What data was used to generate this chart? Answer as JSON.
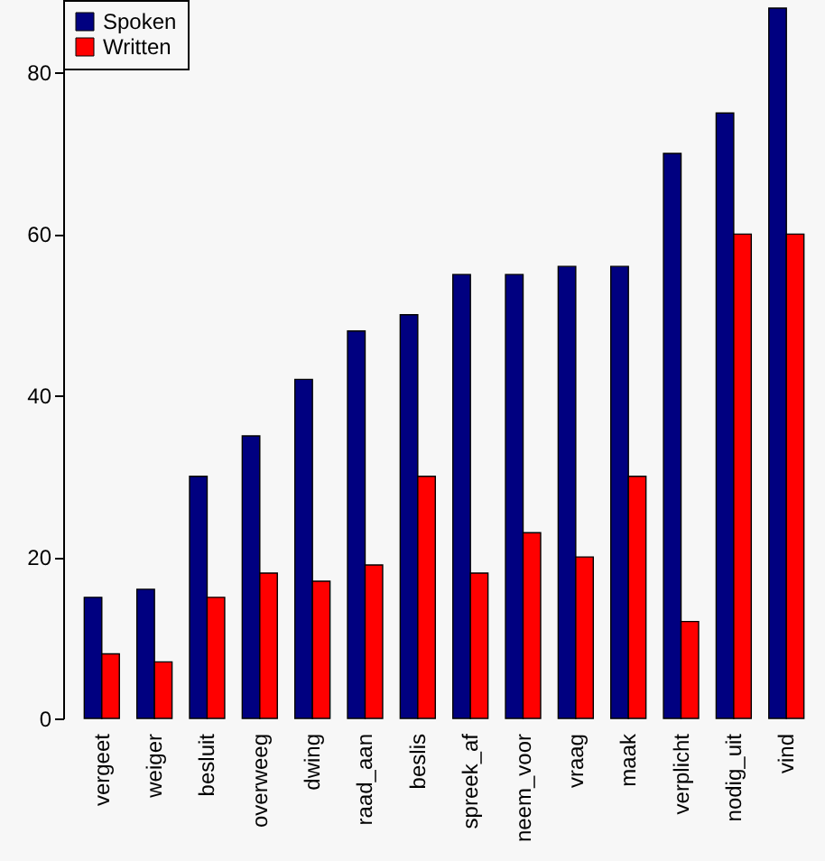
{
  "chart_data": {
    "type": "bar",
    "categories": [
      "vergeet",
      "weiger",
      "besluit",
      "overweeg",
      "dwing",
      "raad_aan",
      "beslis",
      "spreek_af",
      "neem_voor",
      "vraag",
      "maak",
      "verplicht",
      "nodig_uit",
      "vind"
    ],
    "series": [
      {
        "name": "Spoken",
        "color": "#000080",
        "values": [
          15,
          16,
          30,
          35,
          42,
          48,
          50,
          55,
          55,
          56,
          56,
          70,
          75,
          88
        ]
      },
      {
        "name": "Written",
        "color": "#ff0000",
        "values": [
          8,
          7,
          15,
          18,
          17,
          19,
          30,
          18,
          23,
          20,
          30,
          12,
          60,
          60
        ]
      }
    ],
    "ylim": [
      0,
      89
    ],
    "yticks": [
      0,
      20,
      40,
      60,
      80
    ],
    "grid": false,
    "legend": "top left"
  }
}
